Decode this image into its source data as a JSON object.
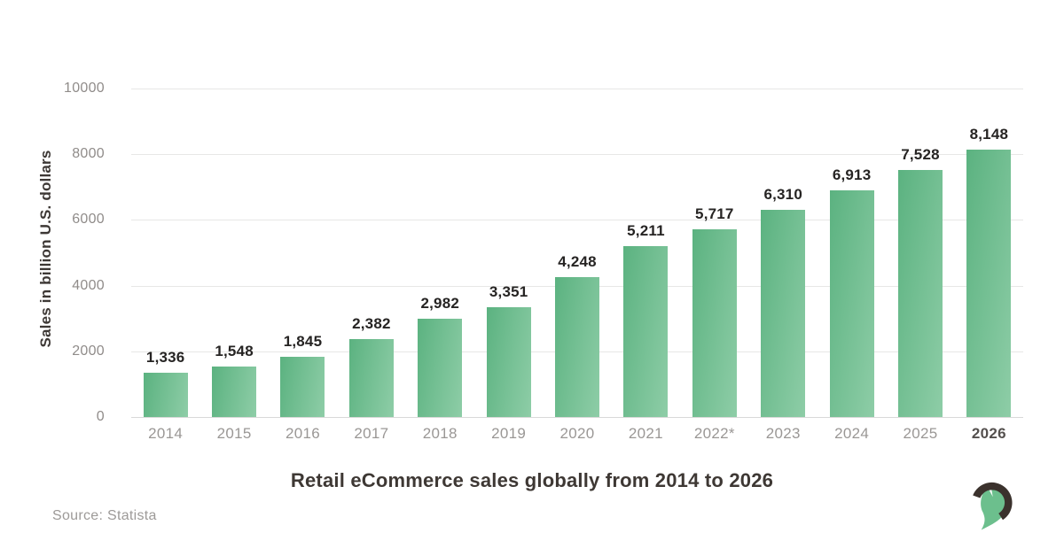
{
  "chart_data": {
    "type": "bar",
    "title": "Retail eCommerce sales globally from 2014 to 2026",
    "ylabel": "Sales in billion U.S. dollars",
    "xlabel": "",
    "categories": [
      "2014",
      "2015",
      "2016",
      "2017",
      "2018",
      "2019",
      "2020",
      "2021",
      "2022*",
      "2023",
      "2024",
      "2025",
      "2026"
    ],
    "values": [
      1336,
      1548,
      1845,
      2382,
      2982,
      3351,
      4248,
      5211,
      5717,
      6310,
      6913,
      7528,
      8148
    ],
    "value_labels": [
      "1,336",
      "1,548",
      "1,845",
      "2,382",
      "2,982",
      "3,351",
      "4,248",
      "5,211",
      "5,717",
      "6,310",
      "6,913",
      "7,528",
      "8,148"
    ],
    "ylim": [
      0,
      10000
    ],
    "yticks": [
      0,
      2000,
      4000,
      6000,
      8000,
      10000
    ],
    "ytick_labels": [
      "0",
      "2000",
      "4000",
      "6000",
      "8000",
      "10000"
    ],
    "grid": true,
    "legend": false,
    "highlighted_category": "2026",
    "bar_gradient_start": "#5bb280",
    "bar_gradient_end": "#8ecda7"
  },
  "footer": {
    "source_label": "Source: Statista",
    "logo_name": "spartan-helmet-logo",
    "logo_crest_color": "#3b322d",
    "logo_helmet_color": "#6cbf8d"
  },
  "colors": {
    "background": "#ffffff",
    "gridline": "#e7e7e6",
    "axis_text": "#908c8a",
    "value_text": "#262423",
    "title_text": "#3e3834"
  }
}
